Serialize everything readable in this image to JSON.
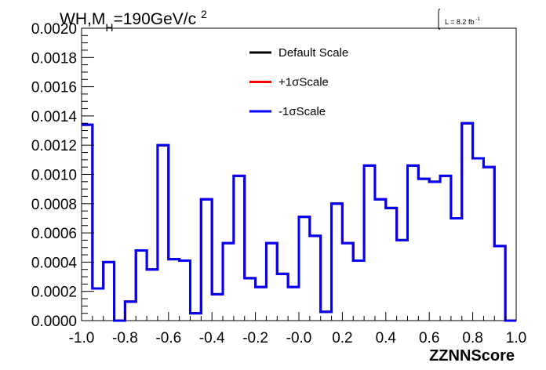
{
  "chart_data": {
    "type": "histogram",
    "title_prefix": "WH,M",
    "title_sub": "H",
    "title_suffix": "=190GeV/c",
    "title_sup": "2",
    "lumi_label": "L = 8.2 fb",
    "lumi_sup": "-1",
    "xlabel": "ZZNNScore",
    "xlim": [
      -1.0,
      1.0
    ],
    "ylim": [
      0.0,
      0.002
    ],
    "x_ticks": [
      -1.0,
      -0.8,
      -0.6,
      -0.4,
      -0.2,
      0.0,
      0.2,
      0.4,
      0.6,
      0.8,
      1.0
    ],
    "x_tick_labels": [
      "-1.0",
      "-0.8",
      "-0.6",
      "-0.4",
      "-0.2",
      "-0.0",
      "0.2",
      "0.4",
      "0.6",
      "0.8",
      "1.0"
    ],
    "y_ticks": [
      0.0,
      0.0002,
      0.0004,
      0.0006,
      0.0008,
      0.001,
      0.0012,
      0.0014,
      0.0016,
      0.0018,
      0.002
    ],
    "y_tick_labels": [
      "0.0000",
      "0.0002",
      "0.0004",
      "0.0006",
      "0.0008",
      "0.0010",
      "0.0012",
      "0.0014",
      "0.0016",
      "0.0018",
      "0.0020"
    ],
    "bin_edges": [
      -1.0,
      -0.95,
      -0.9,
      -0.85,
      -0.8,
      -0.75,
      -0.7,
      -0.65,
      -0.6,
      -0.55,
      -0.5,
      -0.45,
      -0.4,
      -0.35,
      -0.3,
      -0.25,
      -0.2,
      -0.15,
      -0.1,
      -0.05,
      0.0,
      0.05,
      0.1,
      0.15,
      0.2,
      0.25,
      0.3,
      0.35,
      0.4,
      0.45,
      0.5,
      0.55,
      0.6,
      0.65,
      0.7,
      0.75,
      0.8,
      0.85,
      0.9,
      0.95,
      1.0
    ],
    "series": [
      {
        "name": "Default Scale",
        "color": "#000000",
        "values": [
          0.00134,
          0.00022,
          0.0004,
          0.0,
          0.00013,
          0.00048,
          0.00035,
          0.0012,
          0.00042,
          0.00041,
          5e-05,
          0.00083,
          0.00018,
          0.00053,
          0.00099,
          0.00029,
          0.00023,
          0.00053,
          0.00032,
          0.00023,
          0.00071,
          0.00058,
          6e-05,
          0.0008,
          0.00053,
          0.00041,
          0.00106,
          0.00083,
          0.00077,
          0.00055,
          0.00106,
          0.00097,
          0.00095,
          0.00099,
          0.0007,
          0.00135,
          0.00111,
          0.00105,
          0.00051,
          0.0
        ]
      },
      {
        "name": "+1σScale",
        "color": "#ff0000",
        "values": [
          0.00134,
          0.00022,
          0.0004,
          0.0,
          0.00013,
          0.00048,
          0.00035,
          0.0012,
          0.00042,
          0.00041,
          5e-05,
          0.00083,
          0.00018,
          0.00053,
          0.00099,
          0.00029,
          0.00023,
          0.00053,
          0.00032,
          0.00023,
          0.00071,
          0.00058,
          6e-05,
          0.0008,
          0.00053,
          0.00041,
          0.00106,
          0.00083,
          0.00077,
          0.00055,
          0.00106,
          0.00097,
          0.00095,
          0.00099,
          0.0007,
          0.00135,
          0.00111,
          0.00105,
          0.00051,
          0.0
        ]
      },
      {
        "name": "-1σScale",
        "color": "#0000ff",
        "values": [
          0.00134,
          0.00022,
          0.0004,
          0.0,
          0.00013,
          0.00048,
          0.00035,
          0.0012,
          0.00042,
          0.00041,
          5e-05,
          0.00083,
          0.00018,
          0.00053,
          0.00099,
          0.00029,
          0.00023,
          0.00053,
          0.00032,
          0.00023,
          0.00071,
          0.00058,
          6e-05,
          0.0008,
          0.00053,
          0.00041,
          0.00106,
          0.00083,
          0.00077,
          0.00055,
          0.00106,
          0.00097,
          0.00095,
          0.00099,
          0.0007,
          0.00135,
          0.00111,
          0.00105,
          0.00051,
          0.0
        ]
      }
    ],
    "grid": false,
    "legend_position": "top-center"
  }
}
